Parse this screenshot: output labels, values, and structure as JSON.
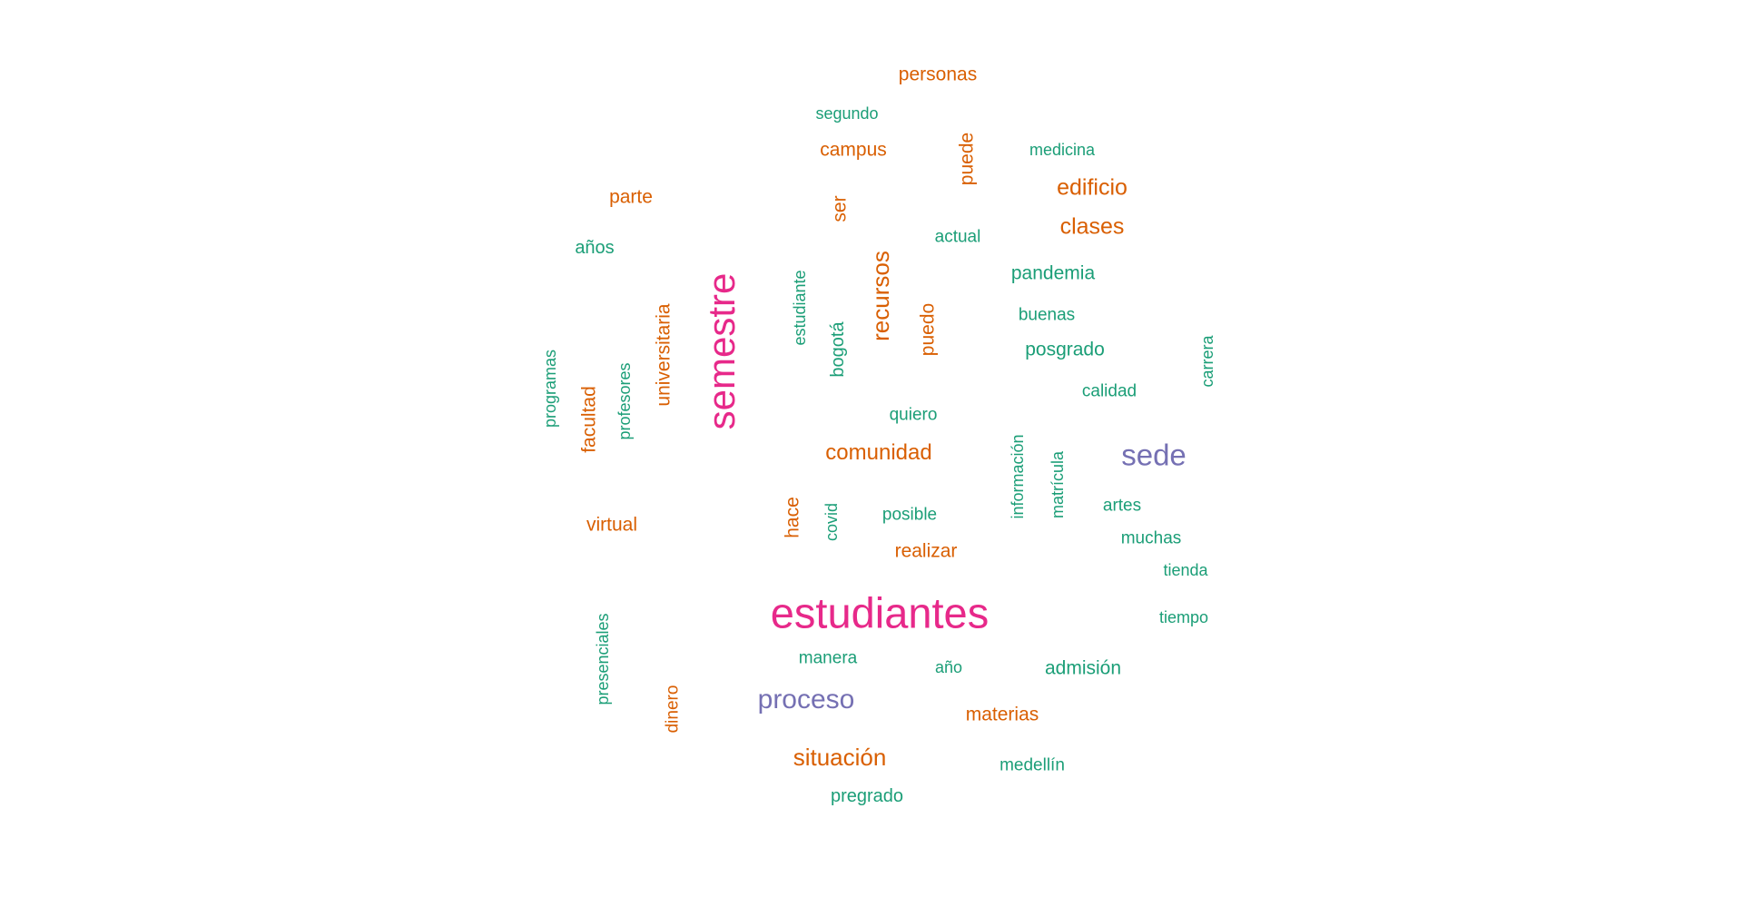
{
  "colors": {
    "green": "#1b9e77",
    "orange": "#d95f02",
    "purple": "#7570b3",
    "pink": "#e7298a"
  },
  "words": [
    {
      "text": "personas",
      "color": "orange",
      "rank": 2
    },
    {
      "text": "segundo",
      "color": "green",
      "rank": 1
    },
    {
      "text": "campus",
      "color": "orange",
      "rank": 2
    },
    {
      "text": "puede",
      "color": "orange",
      "rank": 2
    },
    {
      "text": "medicina",
      "color": "green",
      "rank": 1
    },
    {
      "text": "parte",
      "color": "orange",
      "rank": 2
    },
    {
      "text": "ser",
      "color": "orange",
      "rank": 2
    },
    {
      "text": "edificio",
      "color": "orange",
      "rank": 3
    },
    {
      "text": "clases",
      "color": "orange",
      "rank": 3
    },
    {
      "text": "años",
      "color": "green",
      "rank": 1
    },
    {
      "text": "actual",
      "color": "green",
      "rank": 1
    },
    {
      "text": "semestre",
      "color": "pink",
      "rank": 6
    },
    {
      "text": "estudiante",
      "color": "green",
      "rank": 1
    },
    {
      "text": "recursos",
      "color": "orange",
      "rank": 3
    },
    {
      "text": "pandemia",
      "color": "green",
      "rank": 2
    },
    {
      "text": "universitaria",
      "color": "orange",
      "rank": 2
    },
    {
      "text": "buenas",
      "color": "green",
      "rank": 1
    },
    {
      "text": "puedo",
      "color": "orange",
      "rank": 2
    },
    {
      "text": "bogotá",
      "color": "green",
      "rank": 1
    },
    {
      "text": "posgrado",
      "color": "green",
      "rank": 2
    },
    {
      "text": "carrera",
      "color": "green",
      "rank": 1
    },
    {
      "text": "programas",
      "color": "green",
      "rank": 1
    },
    {
      "text": "profesores",
      "color": "green",
      "rank": 1
    },
    {
      "text": "facultad",
      "color": "orange",
      "rank": 2
    },
    {
      "text": "calidad",
      "color": "green",
      "rank": 1
    },
    {
      "text": "quiero",
      "color": "green",
      "rank": 1
    },
    {
      "text": "comunidad",
      "color": "orange",
      "rank": 3
    },
    {
      "text": "sede",
      "color": "purple",
      "rank": 4
    },
    {
      "text": "información",
      "color": "green",
      "rank": 1
    },
    {
      "text": "matrícula",
      "color": "green",
      "rank": 1
    },
    {
      "text": "artes",
      "color": "green",
      "rank": 1
    },
    {
      "text": "hace",
      "color": "orange",
      "rank": 2
    },
    {
      "text": "covid",
      "color": "green",
      "rank": 1
    },
    {
      "text": "posible",
      "color": "green",
      "rank": 1
    },
    {
      "text": "virtual",
      "color": "orange",
      "rank": 2
    },
    {
      "text": "muchas",
      "color": "green",
      "rank": 1
    },
    {
      "text": "realizar",
      "color": "orange",
      "rank": 2
    },
    {
      "text": "tienda",
      "color": "green",
      "rank": 1
    },
    {
      "text": "estudiantes",
      "color": "pink",
      "rank": 6
    },
    {
      "text": "tiempo",
      "color": "green",
      "rank": 1
    },
    {
      "text": "presenciales",
      "color": "green",
      "rank": 1
    },
    {
      "text": "manera",
      "color": "green",
      "rank": 1
    },
    {
      "text": "año",
      "color": "green",
      "rank": 1
    },
    {
      "text": "admisión",
      "color": "green",
      "rank": 2
    },
    {
      "text": "dinero",
      "color": "orange",
      "rank": 2
    },
    {
      "text": "proceso",
      "color": "purple",
      "rank": 4
    },
    {
      "text": "materias",
      "color": "orange",
      "rank": 2
    },
    {
      "text": "situación",
      "color": "orange",
      "rank": 3
    },
    {
      "text": "medellín",
      "color": "green",
      "rank": 1
    },
    {
      "text": "pregrado",
      "color": "green",
      "rank": 2
    }
  ]
}
